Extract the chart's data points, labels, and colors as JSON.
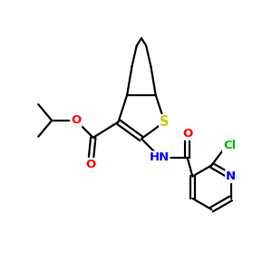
{
  "bg_color": "#ffffff",
  "atom_colors": {
    "S": "#cccc00",
    "O": "#ff0000",
    "N": "#0000ff",
    "Cl": "#00bb00",
    "C": "#000000",
    "H": "#000000"
  },
  "bond_color": "#000000",
  "bond_width": 1.6,
  "font_size_atoms": 9.5
}
